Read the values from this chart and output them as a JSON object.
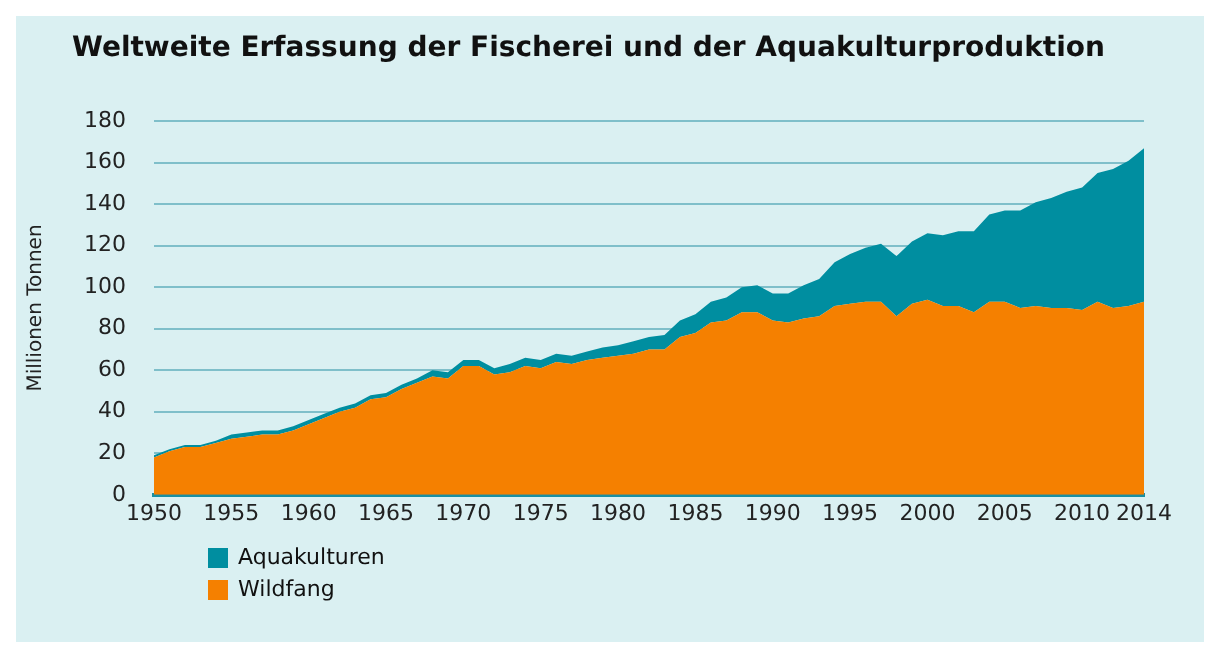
{
  "chart_data": {
    "type": "area",
    "title": "Weltweite Erfassung der Fischerei und der Aquakulturproduktion",
    "ylabel": "Millionen Tonnen",
    "x": [
      1950,
      1951,
      1952,
      1953,
      1954,
      1955,
      1956,
      1957,
      1958,
      1959,
      1960,
      1961,
      1962,
      1963,
      1964,
      1965,
      1966,
      1967,
      1968,
      1969,
      1970,
      1971,
      1972,
      1973,
      1974,
      1975,
      1976,
      1977,
      1978,
      1979,
      1980,
      1981,
      1982,
      1983,
      1984,
      1985,
      1986,
      1987,
      1988,
      1989,
      1990,
      1991,
      1992,
      1993,
      1994,
      1995,
      1996,
      1997,
      1998,
      1999,
      2000,
      2001,
      2002,
      2003,
      2004,
      2005,
      2006,
      2007,
      2008,
      2009,
      2010,
      2011,
      2012,
      2013,
      2014
    ],
    "series": [
      {
        "name": "Wildfang",
        "color": "#f58000",
        "values": [
          18,
          21,
          23,
          23,
          25,
          27,
          28,
          29,
          29,
          31,
          34,
          37,
          40,
          42,
          46,
          47,
          51,
          54,
          57,
          56,
          62,
          62,
          58,
          59,
          62,
          61,
          64,
          63,
          65,
          66,
          67,
          68,
          70,
          70,
          76,
          78,
          83,
          84,
          88,
          88,
          84,
          83,
          85,
          86,
          91,
          92,
          93,
          93,
          86,
          92,
          94,
          91,
          91,
          88,
          93,
          93,
          90,
          91,
          90,
          90,
          89,
          93,
          90,
          91,
          93
        ]
      },
      {
        "name": "Aquakulturen",
        "color": "#008ea0",
        "values": [
          1,
          1,
          1,
          1,
          1,
          2,
          2,
          2,
          2,
          2,
          2,
          2,
          2,
          2,
          2,
          2,
          2,
          2,
          3,
          3,
          3,
          3,
          3,
          4,
          4,
          4,
          4,
          4,
          4,
          5,
          5,
          6,
          6,
          7,
          8,
          9,
          10,
          11,
          12,
          13,
          13,
          14,
          16,
          18,
          21,
          24,
          26,
          28,
          29,
          30,
          32,
          34,
          36,
          39,
          42,
          44,
          47,
          50,
          53,
          56,
          59,
          62,
          67,
          70,
          74
        ]
      }
    ],
    "stacked": true,
    "xlim": [
      1950,
      2014
    ],
    "xticks": [
      1950,
      1955,
      1960,
      1965,
      1970,
      1975,
      1980,
      1985,
      1990,
      1995,
      2000,
      2005,
      2010,
      2014
    ],
    "ylim": [
      0,
      180
    ],
    "yticks": [
      0,
      20,
      40,
      60,
      80,
      100,
      120,
      140,
      160,
      180
    ],
    "grid": "y",
    "legend": "bottom left"
  }
}
